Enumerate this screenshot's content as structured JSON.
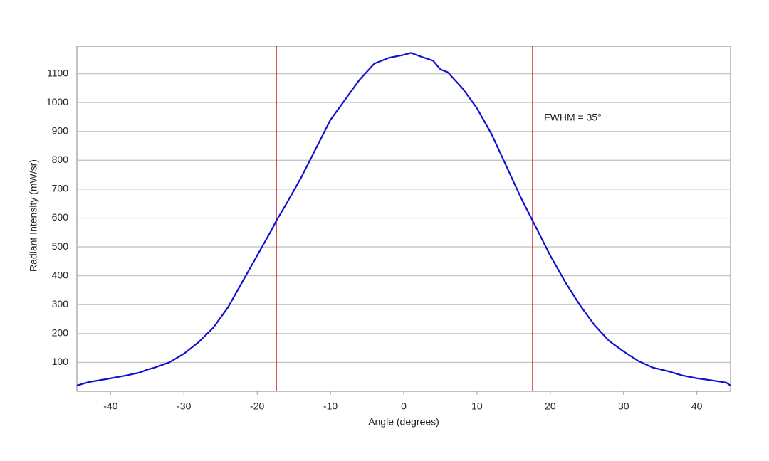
{
  "chart_data": {
    "type": "line",
    "x_label": "Angle (degrees)",
    "y_label": "Radiant Intensity (mW/sr)",
    "annotation": "FWHM = 35°",
    "x": [
      -44.6,
      -43,
      -42,
      -40,
      -38,
      -36,
      -35,
      -34,
      -32,
      -30,
      -28,
      -26,
      -24,
      -22,
      -20,
      -18,
      -17.4,
      -16,
      -14,
      -12,
      -10,
      -8,
      -6,
      -4,
      -2,
      0,
      1,
      2,
      4,
      5,
      6,
      8,
      10,
      12,
      14,
      16,
      17.6,
      20,
      22,
      24,
      26,
      28,
      30,
      32,
      34,
      36,
      38,
      40,
      42,
      44,
      44.6
    ],
    "series": [
      {
        "color": "#1010d0",
        "values": [
          20,
          32,
          36,
          45,
          54,
          65,
          75,
          82,
          100,
          130,
          170,
          220,
          290,
          380,
          470,
          560,
          590,
          650,
          740,
          840,
          940,
          1010,
          1080,
          1135,
          1155,
          1165,
          1172,
          1162,
          1145,
          1115,
          1105,
          1050,
          980,
          890,
          780,
          670,
          590,
          470,
          380,
          300,
          230,
          175,
          138,
          105,
          82,
          70,
          55,
          45,
          38,
          30,
          20
        ]
      }
    ],
    "vlines": [
      -17.4,
      17.6
    ],
    "vline_color": "#cc1111",
    "xlim": [
      -44.6,
      44.6
    ],
    "ylim": [
      0,
      1195
    ],
    "xticks": [
      -40,
      -30,
      -20,
      -10,
      0,
      10,
      20,
      30,
      40
    ],
    "yticks": [
      100,
      200,
      300,
      400,
      500,
      600,
      700,
      800,
      900,
      1000,
      1100
    ],
    "grid": true
  }
}
